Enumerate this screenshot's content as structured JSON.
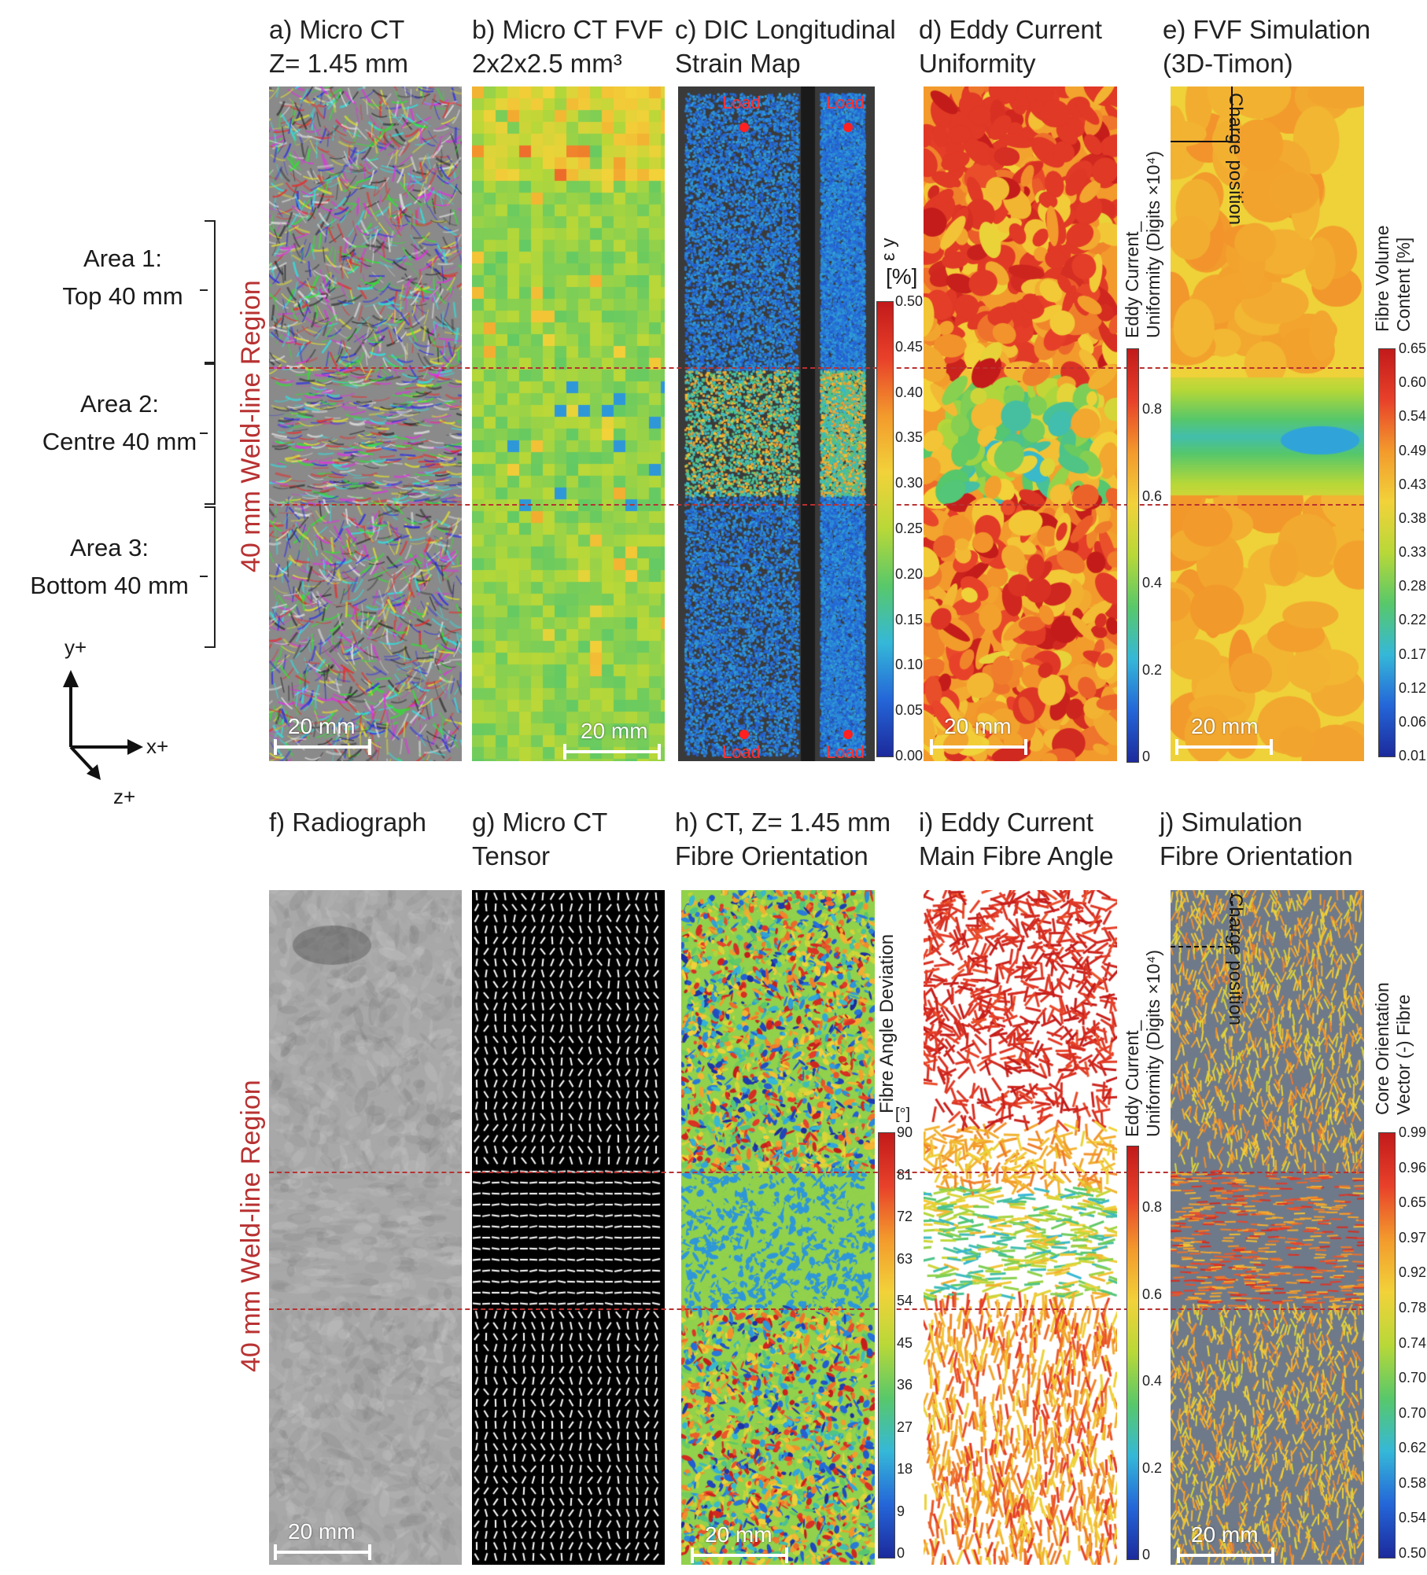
{
  "panels": [
    {
      "id": "a",
      "title": [
        "a) Micro CT",
        "Z= 1.45 mm"
      ],
      "scale": "20 mm"
    },
    {
      "id": "b",
      "title": [
        "b) Micro CT FVF",
        "2x2x2.5 mm³"
      ],
      "scale": "20 mm"
    },
    {
      "id": "c",
      "title": [
        "c) DIC Longitudinal",
        "Strain Map"
      ],
      "load_labels": [
        "Load",
        "Load",
        "Load",
        "Load"
      ]
    },
    {
      "id": "d",
      "title": [
        "d) Eddy Current",
        "Uniformity"
      ],
      "scale": "20 mm"
    },
    {
      "id": "e",
      "title": [
        "e) FVF Simulation",
        "(3D-Timon)"
      ],
      "scale": "20 mm",
      "annotation": "Charge position"
    },
    {
      "id": "f",
      "title": [
        "f) Radiograph",
        ""
      ],
      "scale": "20 mm"
    },
    {
      "id": "g",
      "title": [
        "g) Micro CT",
        "Tensor"
      ]
    },
    {
      "id": "h",
      "title": [
        "h) CT, Z= 1.45 mm",
        "Fibre Orientation"
      ],
      "scale": "20 mm"
    },
    {
      "id": "i",
      "title": [
        "i) Eddy Current",
        "Main Fibre Angle"
      ]
    },
    {
      "id": "j",
      "title": [
        "j) Simulation",
        "Fibre Orientation"
      ],
      "scale": "20 mm",
      "annotation": "Charge position"
    }
  ],
  "areas": [
    {
      "line1": "Area 1:",
      "line2": "Top 40 mm"
    },
    {
      "line1": "Area 2:",
      "line2": "Centre 40 mm"
    },
    {
      "line1": "Area 3:",
      "line2": "Bottom 40 mm"
    }
  ],
  "region_label": "40 mm Weld-line Region",
  "axes": {
    "y": "y+",
    "x": "x+",
    "z": "z+"
  },
  "colorbars": {
    "strain": {
      "title": "ε y",
      "unit": "[%]",
      "ticks": [
        "0.50",
        "0.45",
        "0.40",
        "0.35",
        "0.30",
        "0.25",
        "0.20",
        "0.15",
        "0.10",
        "0.05",
        "0.00"
      ]
    },
    "eddy_top": {
      "title": [
        "Eddy Current_",
        "Uniformity (Digits ×10⁴)"
      ],
      "ticks": [
        "0.8",
        "0.6",
        "0.4",
        "0.2",
        "0"
      ]
    },
    "fvf": {
      "title": [
        "Fibre Volume",
        "Content  [%]"
      ],
      "ticks": [
        "0.65",
        "0.60",
        "0.54",
        "0.49",
        "0.43",
        "0.38",
        "0.33",
        "0.28",
        "0.22",
        "0.17",
        "0.12",
        "0.06",
        "0.01"
      ]
    },
    "angle": {
      "title": "Fibre Angle Deviation",
      "unit": "[°]",
      "ticks": [
        "90",
        "81",
        "72",
        "63",
        "54",
        "45",
        "36",
        "27",
        "18",
        "9",
        "0"
      ]
    },
    "eddy_bottom": {
      "title": [
        "Eddy Current_",
        "Uniformity (Digits ×10⁴)"
      ],
      "ticks": [
        "0.8",
        "0.6",
        "0.4",
        "0.2",
        "0"
      ]
    },
    "orientation": {
      "title": [
        "Core Orientation",
        "Vector (-) Fibre"
      ],
      "ticks": [
        "0.99",
        "0.96",
        "0.65",
        "0.97",
        "0.92",
        "0.78",
        "0.74",
        "0.70",
        "0.70",
        "0.62",
        "0.58",
        "0.54",
        "0.50"
      ]
    }
  },
  "colors": {
    "accent": "#b83232",
    "jet": [
      "#1c2a9c",
      "#2466d8",
      "#35b8d8",
      "#58c86a",
      "#b8d838",
      "#f2d23a",
      "#f39a2c",
      "#e8412a",
      "#c21a1a"
    ]
  }
}
